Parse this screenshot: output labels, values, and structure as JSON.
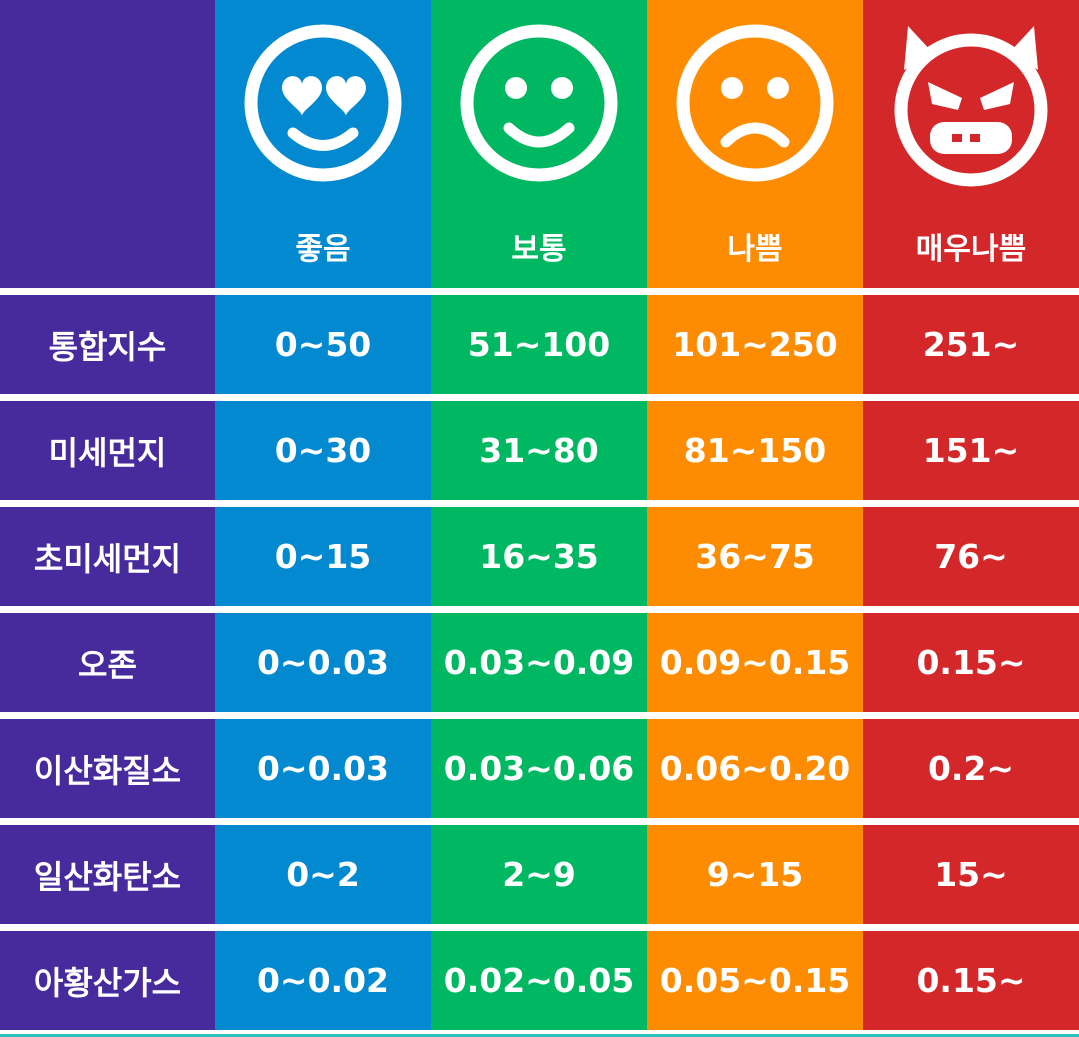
{
  "colors": {
    "label_column": "#472b9c",
    "good": "#0389d0",
    "normal": "#00b862",
    "bad": "#fd8c02",
    "very_bad": "#d4272a",
    "text": "#ffffff"
  },
  "grades": [
    {
      "label": "좋음",
      "icon": "heart-eyes-face-icon"
    },
    {
      "label": "보통",
      "icon": "smiling-face-icon"
    },
    {
      "label": "나쁨",
      "icon": "sad-face-icon"
    },
    {
      "label": "매우나쁨",
      "icon": "devil-face-icon"
    }
  ],
  "rows": [
    {
      "pollutant": "통합지수",
      "values": [
        "0~50",
        "51~100",
        "101~250",
        "251~"
      ]
    },
    {
      "pollutant": "미세먼지",
      "values": [
        "0~30",
        "31~80",
        "81~150",
        "151~"
      ]
    },
    {
      "pollutant": "초미세먼지",
      "values": [
        "0~15",
        "16~35",
        "36~75",
        "76~"
      ]
    },
    {
      "pollutant": "오존",
      "values": [
        "0~0.03",
        "0.03~0.09",
        "0.09~0.15",
        "0.15~"
      ]
    },
    {
      "pollutant": "이산화질소",
      "values": [
        "0~0.03",
        "0.03~0.06",
        "0.06~0.20",
        "0.2~"
      ]
    },
    {
      "pollutant": "일산화탄소",
      "values": [
        "0~2",
        "2~9",
        "9~15",
        "15~"
      ]
    },
    {
      "pollutant": "아황산가스",
      "values": [
        "0~0.02",
        "0.02~0.05",
        "0.05~0.15",
        "0.15~"
      ]
    }
  ]
}
